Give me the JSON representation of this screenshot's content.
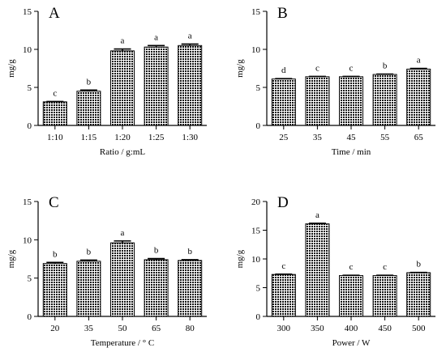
{
  "chart_data": [
    {
      "type": "bar",
      "panel_label": "A",
      "categories": [
        "1:10",
        "1:15",
        "1:20",
        "1:25",
        "1:30"
      ],
      "values": [
        3.1,
        4.5,
        9.8,
        10.3,
        10.5
      ],
      "errors": [
        0.05,
        0.15,
        0.25,
        0.2,
        0.2
      ],
      "significance": [
        "c",
        "b",
        "a",
        "a",
        "a"
      ],
      "xlabel": "Ratio / g:mL",
      "ylabel": "mg/g",
      "ylim": [
        0,
        15
      ],
      "yticks": [
        0,
        5,
        10,
        15
      ]
    },
    {
      "type": "bar",
      "panel_label": "B",
      "categories": [
        "25",
        "35",
        "45",
        "55",
        "65"
      ],
      "values": [
        6.1,
        6.4,
        6.4,
        6.7,
        7.4
      ],
      "errors": [
        0.05,
        0.05,
        0.05,
        0.05,
        0.1
      ],
      "significance": [
        "d",
        "c",
        "c",
        "b",
        "a"
      ],
      "xlabel": "Time / min",
      "ylabel": "mg/g",
      "ylim": [
        0,
        15
      ],
      "yticks": [
        0,
        5,
        10,
        15
      ]
    },
    {
      "type": "bar",
      "panel_label": "C",
      "categories": [
        "20",
        "35",
        "50",
        "65",
        "80"
      ],
      "values": [
        6.9,
        7.2,
        9.6,
        7.4,
        7.3
      ],
      "errors": [
        0.15,
        0.15,
        0.25,
        0.15,
        0.1
      ],
      "significance": [
        "b",
        "b",
        "a",
        "b",
        "b"
      ],
      "xlabel": "Temperature / ° C",
      "ylabel": "mg/g",
      "ylim": [
        0,
        15
      ],
      "yticks": [
        0,
        5,
        10,
        15
      ]
    },
    {
      "type": "bar",
      "panel_label": "D",
      "categories": [
        "300",
        "350",
        "400",
        "450",
        "500"
      ],
      "values": [
        7.3,
        16.1,
        7.1,
        7.1,
        7.6
      ],
      "errors": [
        0.05,
        0.1,
        0.05,
        0.05,
        0.05
      ],
      "significance": [
        "c",
        "a",
        "c",
        "c",
        "b"
      ],
      "xlabel": "Power / W",
      "ylabel": "mg/g",
      "ylim": [
        0,
        20
      ],
      "yticks": [
        0,
        5,
        10,
        15,
        20
      ]
    }
  ]
}
